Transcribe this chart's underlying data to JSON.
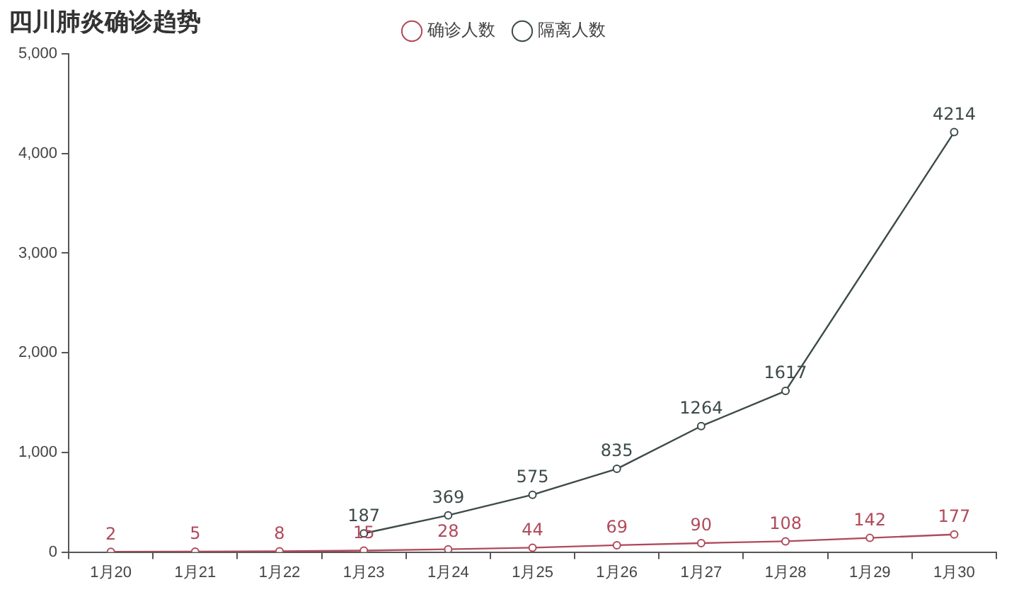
{
  "chart_data": {
    "type": "line",
    "title": "四川肺炎确诊趋势",
    "categories": [
      "1月20",
      "1月21",
      "1月22",
      "1月23",
      "1月24",
      "1月25",
      "1月26",
      "1月27",
      "1月28",
      "1月29",
      "1月30"
    ],
    "series": [
      {
        "name": "确诊人数",
        "color": "#b04a5a",
        "values": [
          2,
          5,
          8,
          15,
          28,
          44,
          69,
          90,
          108,
          142,
          177
        ]
      },
      {
        "name": "隔离人数",
        "color": "#3d4a4a",
        "values": [
          null,
          null,
          null,
          187,
          369,
          575,
          835,
          1264,
          1617,
          null,
          4214
        ]
      }
    ],
    "ylim": [
      0,
      5000
    ],
    "yticks": [
      0,
      {
        "value": 1000,
        "label": "1,000"
      },
      {
        "value": 2000,
        "label": "2,000"
      },
      {
        "value": 3000,
        "label": "3,000"
      },
      {
        "value": 4000,
        "label": "4,000"
      },
      {
        "value": 5000,
        "label": "5,000"
      }
    ],
    "data_labels": true,
    "legend": "top",
    "marker": "circle",
    "line_style": "solid"
  }
}
